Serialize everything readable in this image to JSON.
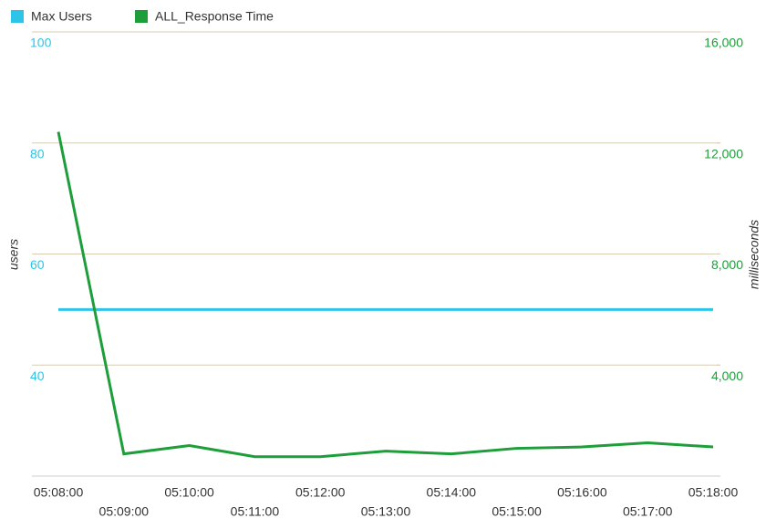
{
  "chart_data": {
    "type": "line",
    "x": [
      "05:08:00",
      "05:09:00",
      "05:10:00",
      "05:11:00",
      "05:12:00",
      "05:13:00",
      "05:14:00",
      "05:15:00",
      "05:16:00",
      "05:17:00",
      "05:18:00"
    ],
    "series": [
      {
        "name": "Max Users",
        "color": "#2ec4e8",
        "values": [
          50,
          50,
          50,
          50,
          50,
          50,
          50,
          50,
          50,
          50,
          50
        ]
      },
      {
        "name": "ALL_Response Time",
        "color": "#1e9e3a",
        "axis": "y2",
        "values": [
          12400,
          800,
          1100,
          700,
          700,
          900,
          800,
          1000,
          1050,
          1200,
          1050
        ]
      }
    ],
    "ylabel": "users",
    "y2label": "milliseconds",
    "ylim": [
      20,
      100
    ],
    "yticks": [
      40,
      60,
      80,
      100
    ],
    "y2lim": [
      0,
      16000
    ],
    "y2ticks": [
      {
        "value": 4000,
        "label": "4,000"
      },
      {
        "value": 8000,
        "label": "8,000"
      },
      {
        "value": 12000,
        "label": "12,000"
      },
      {
        "value": 16000,
        "label": "16,000"
      }
    ],
    "grid": true,
    "legend": "top-left"
  }
}
